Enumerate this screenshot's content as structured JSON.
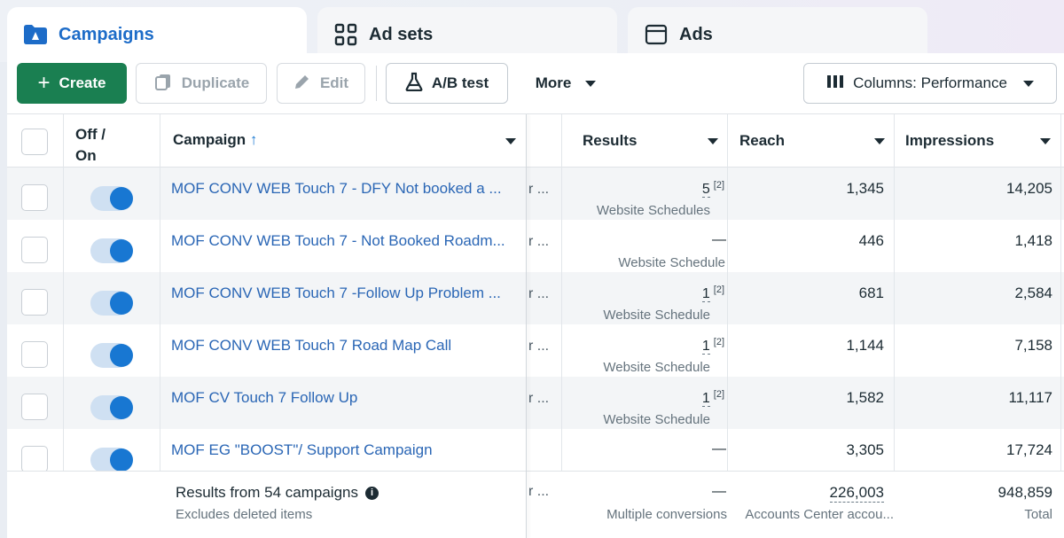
{
  "tabs": [
    {
      "label": "Campaigns",
      "icon": "folder-icon",
      "active": true
    },
    {
      "label": "Ad sets",
      "icon": "grid-icon",
      "active": false
    },
    {
      "label": "Ads",
      "icon": "ad-window-icon",
      "active": false
    }
  ],
  "toolbar": {
    "create": "Create",
    "duplicate": "Duplicate",
    "edit": "Edit",
    "ab_test": "A/B test",
    "more": "More",
    "columns": "Columns: Performance"
  },
  "table": {
    "headers": {
      "off_on_line1": "Off /",
      "off_on_line2": "On",
      "campaign": "Campaign",
      "results": "Results",
      "reach": "Reach",
      "impressions": "Impressions"
    },
    "rows": [
      {
        "campaign": "MOF CONV WEB Touch 7 - DFY Not booked a ...",
        "trunc": "r ...",
        "result": "5",
        "result_note": "[2]",
        "result_sub": "Website Schedules",
        "reach": "1,345",
        "impressions": "14,205"
      },
      {
        "campaign": "MOF CONV WEB Touch 7 - Not Booked Roadm...",
        "trunc": "r ...",
        "result": "—",
        "result_note": "",
        "result_sub": "Website Schedule",
        "reach": "446",
        "impressions": "1,418"
      },
      {
        "campaign": "MOF CONV WEB Touch 7 -Follow Up Problem ...",
        "trunc": "r ...",
        "result": "1",
        "result_note": "[2]",
        "result_sub": "Website Schedule",
        "reach": "681",
        "impressions": "2,584"
      },
      {
        "campaign": "MOF CONV WEB Touch 7 Road Map Call",
        "trunc": "r ...",
        "result": "1",
        "result_note": "[2]",
        "result_sub": "Website Schedule",
        "reach": "1,144",
        "impressions": "7,158"
      },
      {
        "campaign": "MOF CV Touch 7 Follow Up",
        "trunc": "r ...",
        "result": "1",
        "result_note": "[2]",
        "result_sub": "Website Schedule",
        "reach": "1,582",
        "impressions": "11,117"
      },
      {
        "campaign": "MOF EG \"BOOST\"/ Support Campaign",
        "trunc": "",
        "result": "—",
        "result_note": "",
        "result_sub": "",
        "reach": "3,305",
        "impressions": "17,724"
      }
    ],
    "footer": {
      "main": "Results from 54 campaigns",
      "sub": "Excludes deleted items",
      "trunc": "r ...",
      "result": "—",
      "result_sub": "Multiple conversions",
      "reach": "226,003",
      "reach_sub": "Accounts Center accou...",
      "impressions": "948,859",
      "impressions_sub": "Total"
    }
  },
  "colors": {
    "accent_blue": "#1877d2",
    "create_green": "#1a7f51",
    "link_blue": "#2a66b5"
  }
}
